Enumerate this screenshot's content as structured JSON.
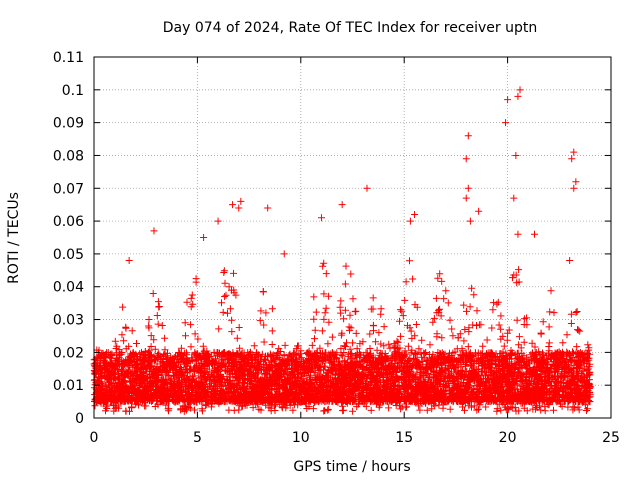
{
  "chart_data": {
    "type": "scatter",
    "title": "Day 074 of 2024, Rate Of TEC Index for receiver uptn",
    "xlabel": "GPS time / hours",
    "ylabel": "ROTI / TECUs",
    "xlim": [
      0,
      25
    ],
    "ylim": [
      0,
      0.11
    ],
    "xticks": [
      0,
      5,
      10,
      15,
      20,
      25
    ],
    "xtick_labels": [
      "0",
      "5",
      "10",
      "15",
      "20",
      "25"
    ],
    "yticks": [
      0,
      0.01,
      0.02,
      0.03,
      0.04,
      0.05,
      0.06,
      0.07,
      0.08,
      0.09,
      0.1,
      0.11
    ],
    "ytick_labels": [
      "0",
      "0.01",
      "0.02",
      "0.03",
      "0.04",
      "0.05",
      "0.06",
      "0.07",
      "0.08",
      "0.09",
      "0.1",
      "0.11"
    ],
    "grid": true,
    "marker": "+",
    "color": "#ff0000",
    "series": [
      {
        "name": "ROTI",
        "x_range": [
          0,
          24
        ],
        "typical_band": [
          0.005,
          0.02
        ],
        "note_points": "dense cloud of samples; notable outliers listed",
        "outliers": [
          {
            "x": 20.6,
            "y": 0.1
          },
          {
            "x": 20.5,
            "y": 0.098
          },
          {
            "x": 20.0,
            "y": 0.097
          },
          {
            "x": 19.9,
            "y": 0.09
          },
          {
            "x": 18.1,
            "y": 0.086
          },
          {
            "x": 23.2,
            "y": 0.081
          },
          {
            "x": 20.4,
            "y": 0.08
          },
          {
            "x": 18.0,
            "y": 0.079
          },
          {
            "x": 23.1,
            "y": 0.079
          },
          {
            "x": 23.3,
            "y": 0.072
          },
          {
            "x": 23.2,
            "y": 0.07
          },
          {
            "x": 18.1,
            "y": 0.07
          },
          {
            "x": 13.2,
            "y": 0.07
          },
          {
            "x": 20.3,
            "y": 0.067
          },
          {
            "x": 18.0,
            "y": 0.067
          },
          {
            "x": 7.1,
            "y": 0.066
          },
          {
            "x": 6.7,
            "y": 0.065
          },
          {
            "x": 12.0,
            "y": 0.065
          },
          {
            "x": 8.4,
            "y": 0.064
          },
          {
            "x": 7.0,
            "y": 0.064
          },
          {
            "x": 15.5,
            "y": 0.062
          },
          {
            "x": 11.0,
            "y": 0.061
          },
          {
            "x": 18.2,
            "y": 0.06
          },
          {
            "x": 2.9,
            "y": 0.057
          },
          {
            "x": 6.0,
            "y": 0.06
          },
          {
            "x": 20.5,
            "y": 0.056
          },
          {
            "x": 21.3,
            "y": 0.056
          },
          {
            "x": 5.3,
            "y": 0.055
          },
          {
            "x": 18.6,
            "y": 0.063
          },
          {
            "x": 15.3,
            "y": 0.06
          },
          {
            "x": 9.2,
            "y": 0.05
          },
          {
            "x": 1.7,
            "y": 0.048
          },
          {
            "x": 23.0,
            "y": 0.048
          }
        ],
        "seed": 74,
        "density": 6400
      }
    ]
  }
}
